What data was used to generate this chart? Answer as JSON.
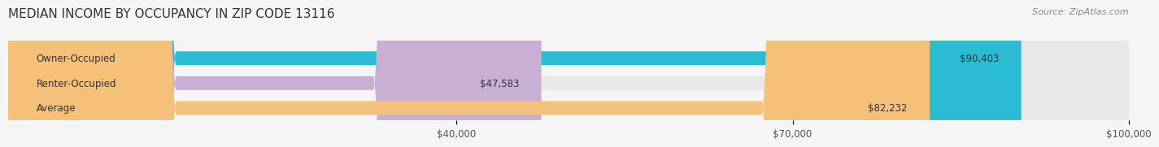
{
  "title": "MEDIAN INCOME BY OCCUPANCY IN ZIP CODE 13116",
  "source": "Source: ZipAtlas.com",
  "categories": [
    "Owner-Occupied",
    "Renter-Occupied",
    "Average"
  ],
  "values": [
    90403,
    47583,
    82232
  ],
  "bar_colors": [
    "#2bbcd4",
    "#c9afd4",
    "#f5c07a"
  ],
  "bar_labels": [
    "$90,403",
    "$47,583",
    "$82,232"
  ],
  "xlim": [
    0,
    100000
  ],
  "xticks": [
    40000,
    70000,
    100000
  ],
  "xtick_labels": [
    "$40,000",
    "$70,000",
    "$100,000"
  ],
  "background_color": "#f5f5f5",
  "bar_bg_color": "#e8e8e8",
  "title_fontsize": 11,
  "source_fontsize": 8,
  "label_fontsize": 8.5,
  "tick_fontsize": 8.5
}
